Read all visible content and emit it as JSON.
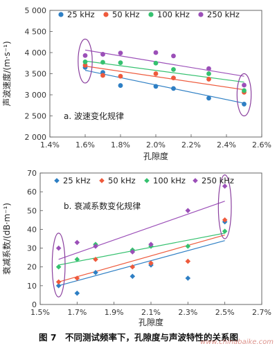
{
  "chart_data": [
    {
      "type": "scatter",
      "subtitle": "a. 波速变化规律",
      "xlabel": "孔隙度",
      "ylabel": "声波速度/(m·s⁻¹)",
      "xlim": [
        1.4,
        2.6
      ],
      "ylim": [
        2000,
        5000
      ],
      "xticks": [
        1.4,
        1.6,
        1.8,
        2.0,
        2.2,
        2.4,
        2.6
      ],
      "xtick_labels": [
        "1.4%",
        "1.6%",
        "1.8%",
        "2.0%",
        "2.2%",
        "2.4%",
        "2.6%"
      ],
      "yticks": [
        2000,
        2500,
        3000,
        3500,
        4000,
        4500,
        5000
      ],
      "ytick_labels": [
        "2 000",
        "2 500",
        "3 000",
        "3 500",
        "4 000",
        "4 500",
        "5 000"
      ],
      "legend": "top",
      "marker": "circle",
      "series": [
        {
          "name": "25 kHz",
          "color": "#2e7fc4",
          "x": [
            1.6,
            1.7,
            1.8,
            2.0,
            2.1,
            2.3,
            2.5
          ],
          "y": [
            3650,
            3530,
            3220,
            3200,
            3150,
            2920,
            2780
          ],
          "fit": [
            [
              1.6,
              3580
            ],
            [
              2.5,
              2800
            ]
          ]
        },
        {
          "name": "50 kHz",
          "color": "#ee5a3c",
          "x": [
            1.6,
            1.7,
            1.8,
            2.0,
            2.1,
            2.3,
            2.5
          ],
          "y": [
            3700,
            3460,
            3440,
            3500,
            3400,
            3370,
            3060
          ],
          "fit": [
            [
              1.6,
              3680
            ],
            [
              2.5,
              3120
            ]
          ]
        },
        {
          "name": "100 kHz",
          "color": "#35c16f",
          "x": [
            1.6,
            1.7,
            1.8,
            2.0,
            2.1,
            2.3,
            2.5
          ],
          "y": [
            3780,
            3770,
            3760,
            3750,
            3600,
            3500,
            3100
          ],
          "fit": [
            [
              1.6,
              3800
            ],
            [
              2.5,
              3300
            ]
          ]
        },
        {
          "name": "250 kHz",
          "color": "#9b4fb8",
          "x": [
            1.6,
            1.7,
            1.8,
            2.0,
            2.1,
            2.3,
            2.5
          ],
          "y": [
            3930,
            3960,
            3990,
            4000,
            3920,
            3620,
            3230
          ],
          "fit": [
            [
              1.6,
              4060
            ],
            [
              2.5,
              3440
            ]
          ]
        }
      ],
      "ellipses": [
        {
          "cx": 1.6,
          "cy": 3800,
          "rx": 0.04,
          "ry": 520
        },
        {
          "cx": 2.5,
          "cy": 3000,
          "rx": 0.04,
          "ry": 500
        }
      ]
    },
    {
      "type": "scatter",
      "subtitle": "b. 衰减系数变化规律",
      "xlabel": "孔隙度",
      "ylabel": "衰减系数/(dB·m⁻¹)",
      "xlim": [
        1.5,
        2.7
      ],
      "ylim": [
        0,
        70
      ],
      "xticks": [
        1.5,
        1.7,
        1.9,
        2.1,
        2.3,
        2.5,
        2.7
      ],
      "xtick_labels": [
        "1.5%",
        "1.7%",
        "1.9%",
        "2.1%",
        "2.3%",
        "2.5%",
        "2.7%"
      ],
      "yticks": [
        0,
        10,
        20,
        30,
        40,
        50,
        60,
        70
      ],
      "ytick_labels": [
        "0",
        "10",
        "20",
        "30",
        "40",
        "50",
        "60",
        "70"
      ],
      "legend": "top",
      "marker": "diamond",
      "series": [
        {
          "name": "25 kHz",
          "color": "#2e7fc4",
          "x": [
            1.6,
            1.7,
            1.8,
            2.0,
            2.1,
            2.3,
            2.5
          ],
          "y": [
            10,
            6,
            17,
            15,
            21,
            14,
            44
          ],
          "fit": [
            [
              1.6,
              10
            ],
            [
              2.5,
              34
            ]
          ]
        },
        {
          "name": "50 kHz",
          "color": "#ee5a3c",
          "x": [
            1.6,
            1.7,
            1.8,
            2.0,
            2.1,
            2.3,
            2.5
          ],
          "y": [
            12,
            14,
            24,
            20,
            22,
            23,
            45
          ],
          "fit": [
            [
              1.6,
              12
            ],
            [
              2.5,
              37
            ]
          ]
        },
        {
          "name": "100 kHz",
          "color": "#35c16f",
          "x": [
            1.6,
            1.7,
            1.8,
            2.0,
            2.1,
            2.3,
            2.5
          ],
          "y": [
            20,
            24,
            32,
            29,
            31,
            31,
            39
          ],
          "fit": [
            [
              1.6,
              21
            ],
            [
              2.5,
              38
            ]
          ]
        },
        {
          "name": "250 kHz",
          "color": "#9b4fb8",
          "x": [
            1.6,
            1.7,
            1.8,
            2.0,
            2.1,
            2.3,
            2.5
          ],
          "y": [
            30,
            33,
            31,
            28,
            32,
            50,
            63
          ],
          "fit": [
            [
              1.6,
              24
            ],
            [
              2.5,
              55
            ]
          ]
        }
      ],
      "ellipses": [
        {
          "cx": 1.6,
          "cy": 21,
          "rx": 0.035,
          "ry": 17
        },
        {
          "cx": 2.5,
          "cy": 52,
          "rx": 0.035,
          "ry": 17
        }
      ]
    }
  ],
  "caption": "图 7　不同测试频率下，孔隙度与声波特性的关系图",
  "watermark": "www.chinabaike.com"
}
